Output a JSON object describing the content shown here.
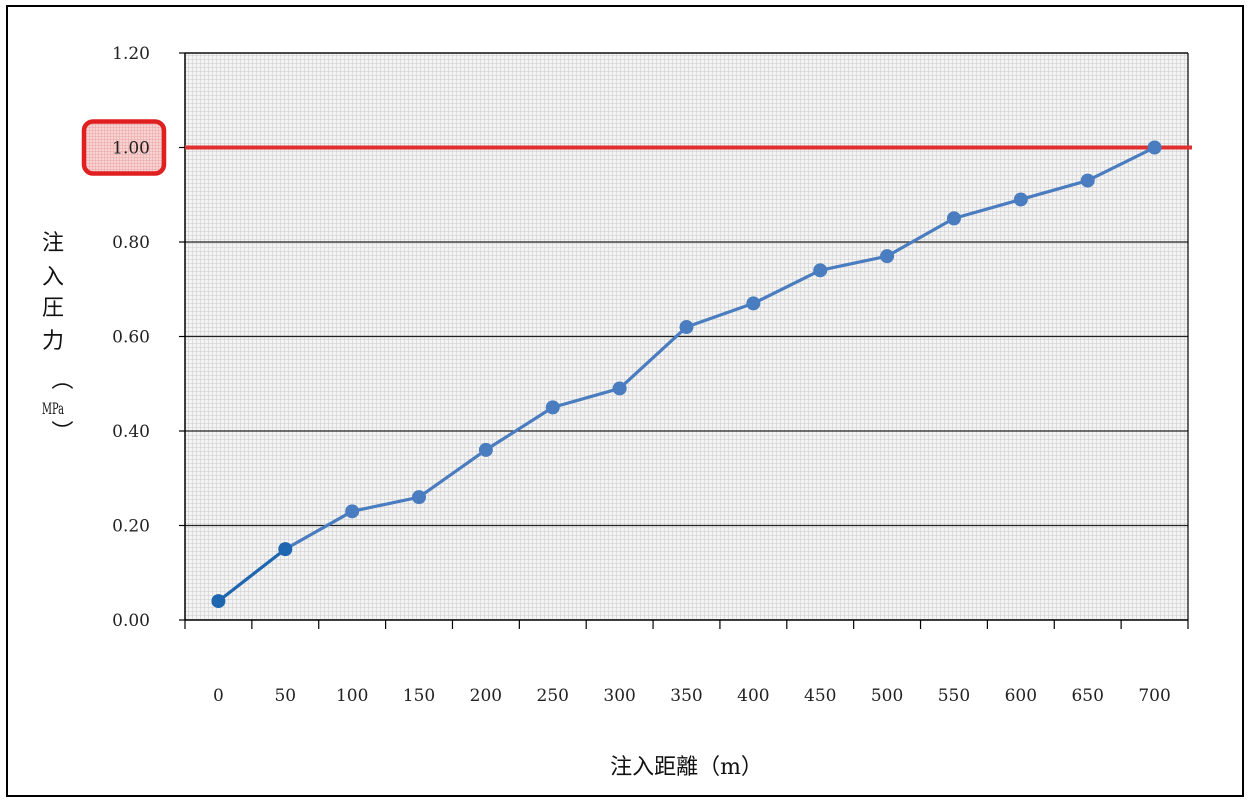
{
  "chart_data": {
    "type": "line",
    "xlabel": "注入距離（m）",
    "ylabel_chars": [
      "注",
      "入",
      "圧",
      "力",
      "（"
    ],
    "ylabel_unit": "MPa",
    "ylabel_close": "）",
    "categories": [
      "0",
      "50",
      "100",
      "150",
      "200",
      "250",
      "300",
      "350",
      "400",
      "450",
      "500",
      "550",
      "600",
      "650",
      "700"
    ],
    "y_ticks": [
      "0.00",
      "0.20",
      "0.40",
      "0.60",
      "0.80",
      "1.00",
      "1.20"
    ],
    "ylim": [
      0,
      1.2
    ],
    "grid": true,
    "series": [
      {
        "values": [
          0.04,
          0.15,
          0.23,
          0.26,
          0.36,
          0.45,
          0.49,
          0.62,
          0.67,
          0.74,
          0.77,
          0.85,
          0.89,
          0.93,
          1.0
        ]
      }
    ],
    "reference_line": {
      "value": 1.0,
      "highlight_label": "1.00"
    },
    "colors": {
      "series": "#4a7cc0",
      "marker": "#4a7cc0",
      "first_segment": "#1f66b0",
      "reference": "#e03030",
      "highlight_box": "#e02020",
      "plot_bg": "#ececec",
      "gridline_major": "#222222"
    }
  }
}
